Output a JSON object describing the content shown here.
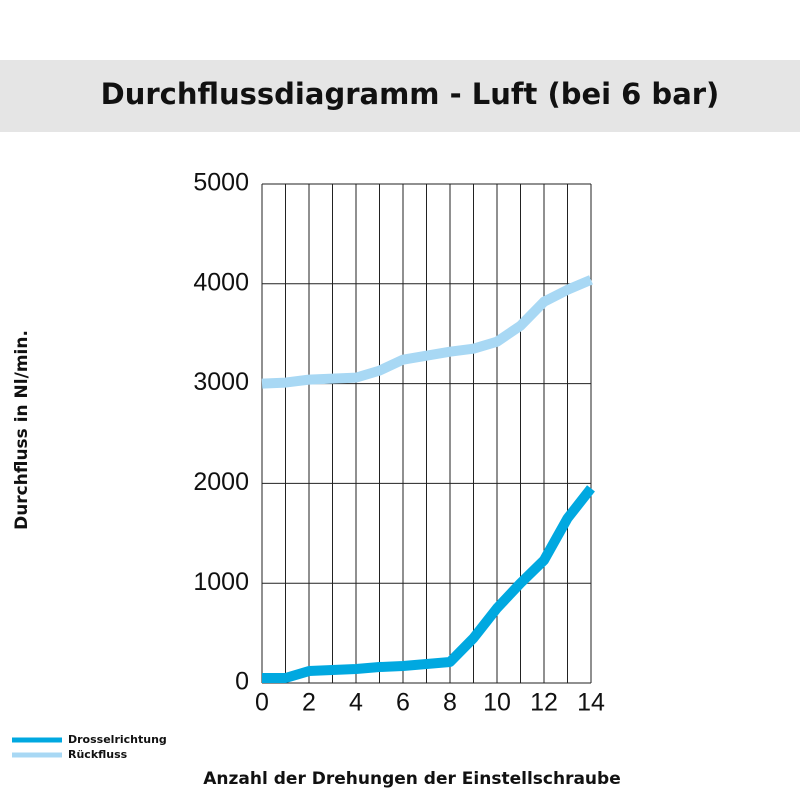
{
  "chart_data": {
    "type": "line",
    "title": "Durchflussdiagramm - Luft (bei 6 bar)",
    "x_label": "Anzahl der Drehungen der Einstellschraube",
    "y_label": "Durchfluss in Nl/min.",
    "x": [
      0,
      1,
      2,
      3,
      4,
      5,
      6,
      7,
      8,
      9,
      10,
      11,
      12,
      13,
      14
    ],
    "series": [
      {
        "name": "Drosselrichtung",
        "color": "#00a8e0",
        "values": [
          50,
          50,
          120,
          130,
          140,
          160,
          170,
          190,
          210,
          450,
          750,
          1000,
          1230,
          1650,
          1950
        ]
      },
      {
        "name": "Rückfluss",
        "color": "#a8d8f4",
        "values": [
          3000,
          3010,
          3040,
          3050,
          3060,
          3130,
          3240,
          3280,
          3320,
          3350,
          3420,
          3580,
          3820,
          3940,
          4040
        ]
      }
    ],
    "xlim": [
      0,
      14
    ],
    "xticks": [
      0,
      2,
      4,
      6,
      8,
      10,
      12,
      14
    ],
    "xgrid": [
      0,
      1,
      2,
      3,
      4,
      5,
      6,
      7,
      8,
      9,
      10,
      11,
      12,
      13,
      14
    ],
    "ylim": [
      0,
      5000
    ],
    "yticks": [
      0,
      1000,
      2000,
      3000,
      4000,
      5000
    ],
    "grid": true,
    "legend": "bottom-left"
  }
}
